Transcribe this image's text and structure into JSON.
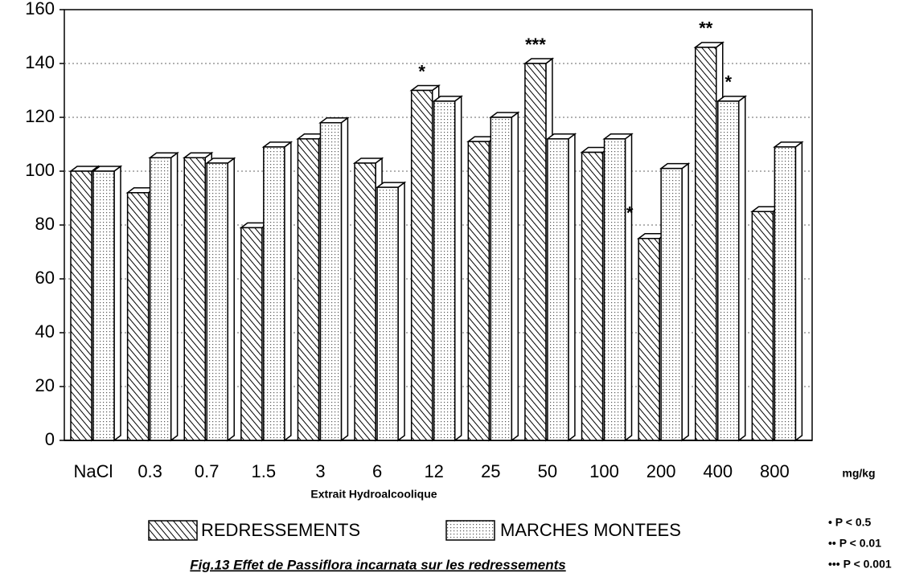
{
  "chart_data": {
    "type": "bar",
    "title": "Fig.13 Effet de Passiflora incarnata sur les redressements",
    "x_label": "Extrait Hydroalcoolique",
    "x_unit": "mg/kg",
    "categories": [
      "NaCl",
      "0.3",
      "0.7",
      "1.5",
      "3",
      "6",
      "12",
      "25",
      "50",
      "100",
      "200",
      "400",
      "800"
    ],
    "series": [
      {
        "name": "REDRESSEMENTS",
        "color": "#000000",
        "pattern": "hatch",
        "values": [
          100,
          92,
          105,
          79,
          112,
          103,
          130,
          111,
          140,
          107,
          75,
          146,
          85
        ]
      },
      {
        "name": "MARCHES MONTEES",
        "color": "#000000",
        "pattern": "dots",
        "values": [
          100,
          105,
          103,
          109,
          118,
          94,
          126,
          120,
          112,
          112,
          101,
          126,
          109
        ]
      }
    ],
    "ylim": [
      0,
      160
    ],
    "yticks": [
      0,
      20,
      40,
      60,
      80,
      100,
      120,
      140,
      160
    ],
    "grid": true,
    "annotations": [
      "*",
      "***",
      "*",
      "**",
      "*"
    ],
    "significance_key": [
      "• P < 0.5",
      "•• P < 0.01",
      "••• P < 0.001"
    ]
  }
}
